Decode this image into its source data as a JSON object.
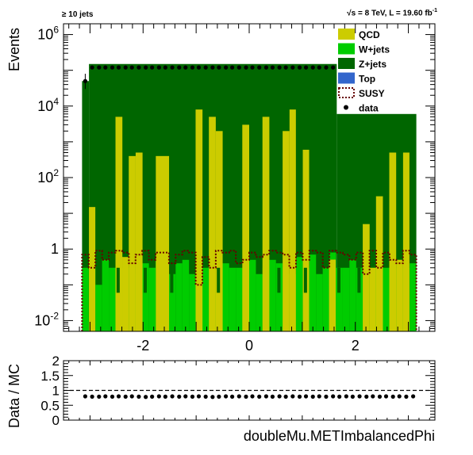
{
  "header": {
    "left": "≥ 10 jets",
    "right_prefix": "√s = 8 TeV, L = 19.60 fb",
    "right_sup": "-1"
  },
  "chart_data": [
    {
      "type": "bar",
      "stacked": true,
      "yscale": "log",
      "title": "",
      "xlabel": "",
      "ylabel": "Events",
      "xlim": [
        -3.5,
        3.5
      ],
      "ylim": [
        0.005,
        2000000
      ],
      "xticks": [
        "-2",
        "0",
        "2"
      ],
      "ytick_values": [
        0.01,
        1,
        100,
        10000,
        1000000
      ],
      "ytick_labels": [
        {
          "base": "10",
          "exp": "-2"
        },
        {
          "base": "1",
          "exp": ""
        },
        {
          "base": "10",
          "exp": "2"
        },
        {
          "base": "10",
          "exp": "4"
        },
        {
          "base": "10",
          "exp": "6"
        }
      ],
      "legend_position": "top-right",
      "legend": [
        {
          "label": "QCD",
          "color": "#cccc00",
          "kind": "fill"
        },
        {
          "label": "W+jets",
          "color": "#00cc00",
          "kind": "fill"
        },
        {
          "label": "Z+jets",
          "color": "#006600",
          "kind": "fill"
        },
        {
          "label": "Top",
          "color": "#3366cc",
          "kind": "fill"
        },
        {
          "label": "SUSY",
          "color": "#660000",
          "kind": "dashed"
        },
        {
          "label": "data",
          "color": "#000000",
          "kind": "marker"
        }
      ],
      "colors": {
        "qcd": "#cccc00",
        "wjets": "#00cc00",
        "zjets": "#006600",
        "top": "#3366cc",
        "susy": "#660000",
        "data": "#000000"
      },
      "bin_edges": [
        -3.15,
        3.15
      ],
      "n_bins": 50,
      "zjets_block": [
        {
          "x0": -3.15,
          "x1": -3.02,
          "y": 50000
        },
        {
          "x0": -3.02,
          "x1": 1.65,
          "y": 150000
        },
        {
          "x0": 1.65,
          "x1": 3.15,
          "y": 6000
        }
      ],
      "qcd_bars": [
        {
          "x0": -3.02,
          "x1": -2.9,
          "y": 0.3
        },
        {
          "x0": -2.9,
          "x1": -2.77,
          "y": 15
        },
        {
          "x0": -2.52,
          "x1": -2.39,
          "y": 0.5
        },
        {
          "x0": -2.64,
          "x1": -2.52,
          "y": 0.4
        },
        {
          "x0": -2.52,
          "x1": -2.39,
          "y": 0.4
        },
        {
          "x0": -2.52,
          "x1": -2.39,
          "y": 0.5
        },
        {
          "x0": -2.52,
          "x1": -2.39,
          "y": 0.4
        },
        {
          "x0": -2.52,
          "x1": -2.39,
          "y": 0.5
        },
        {
          "x0": -2.52,
          "x1": -2.39,
          "y": 0.5
        },
        {
          "x0": -2.52,
          "x1": -2.39,
          "y": 0.5
        },
        {
          "x0": -2.52,
          "x1": -2.39,
          "y": 0.5
        },
        {
          "x0": -2.52,
          "x1": -2.39,
          "y": 0.5
        },
        {
          "x0": -2.27,
          "x1": -2.14,
          "y": 5000
        },
        {
          "x0": -2.14,
          "x1": -2.01,
          "y": 400
        },
        {
          "x0": -1.89,
          "x1": -1.76,
          "y": 500
        },
        {
          "x0": -1.63,
          "x1": -1.38,
          "y": 400
        },
        {
          "x0": -1.38,
          "x1": -1.26,
          "y": 0.8
        },
        {
          "x0": -1.26,
          "x1": -1.13,
          "y": 0.5
        },
        {
          "x0": -1.13,
          "x1": -1.01,
          "y": 0.5
        },
        {
          "x0": -1.01,
          "x1": -0.88,
          "y": 8000
        },
        {
          "x0": -0.88,
          "x1": -0.76,
          "y": 0.3
        },
        {
          "x0": -0.76,
          "x1": -0.63,
          "y": 5000
        },
        {
          "x0": -0.63,
          "x1": -0.5,
          "y": 2000
        },
        {
          "x0": -0.25,
          "x1": -0.13,
          "y": 0.5
        },
        {
          "x0": -0.13,
          "x1": 0.0,
          "y": 3000
        },
        {
          "x0": 0.25,
          "x1": 0.38,
          "y": 5000
        },
        {
          "x0": 0.5,
          "x1": 0.63,
          "y": 0.5
        },
        {
          "x0": 0.63,
          "x1": 0.76,
          "y": 2000
        },
        {
          "x0": 0.76,
          "x1": 0.88,
          "y": 8000
        },
        {
          "x0": 0.88,
          "x1": 1.01,
          "y": 0.5
        },
        {
          "x0": 1.01,
          "x1": 1.13,
          "y": 600
        },
        {
          "x0": 1.26,
          "x1": 1.38,
          "y": 0.5
        },
        {
          "x0": 1.51,
          "x1": 1.63,
          "y": 0.5
        },
        {
          "x0": 1.51,
          "x1": 1.63,
          "y": 0.5
        },
        {
          "x0": 1.51,
          "x1": 1.63,
          "y": 0.5
        },
        {
          "x0": 1.51,
          "x1": 1.63,
          "y": 0.5
        },
        {
          "x0": 1.51,
          "x1": 1.63,
          "y": 0.5
        },
        {
          "x0": 1.51,
          "x1": 1.63,
          "y": 0.5
        },
        {
          "x0": 1.51,
          "x1": 1.63,
          "y": 0.5
        },
        {
          "x0": 1.51,
          "x1": 1.63,
          "y": 0.5
        },
        {
          "x0": 1.51,
          "x1": 1.63,
          "y": 0.5
        },
        {
          "x0": 1.51,
          "x1": 1.63,
          "y": 0.5
        },
        {
          "x0": 1.51,
          "x1": 1.63,
          "y": 0.5
        },
        {
          "x0": 1.51,
          "x1": 1.63,
          "y": 0.5
        },
        {
          "x0": 1.51,
          "x1": 1.63,
          "y": 0.5
        },
        {
          "x0": 1.51,
          "x1": 1.63,
          "y": 0.5
        },
        {
          "x0": 1.51,
          "x1": 1.63,
          "y": 0.5
        },
        {
          "x0": 1.51,
          "x1": 1.63,
          "y": 0.5
        },
        {
          "x0": 1.51,
          "x1": 1.63,
          "y": 0.5
        },
        {
          "x0": 1.51,
          "x1": 1.63,
          "y": 0.5
        }
      ],
      "qcd_tall": [
        {
          "x0": -3.02,
          "x1": -2.9,
          "y": 15
        },
        {
          "x0": -2.52,
          "x1": -2.39,
          "y": 0.6
        },
        {
          "x0": -2.52,
          "x1": -2.39,
          "y": 0.6
        },
        {
          "x0": -2.52,
          "x1": -2.39,
          "y": 0.6
        },
        {
          "x0": -2.52,
          "x1": -2.39,
          "y": 0.6
        },
        {
          "x0": -2.52,
          "x1": -2.39,
          "y": 5000
        },
        {
          "x0": -2.39,
          "x1": -2.27,
          "y": 0.6
        },
        {
          "x0": -2.27,
          "x1": -2.14,
          "y": 400
        },
        {
          "x0": -2.14,
          "x1": -2.01,
          "y": 500
        },
        {
          "x0": -1.76,
          "x1": -1.51,
          "y": 400
        },
        {
          "x0": -1.01,
          "x1": -0.88,
          "y": 8000
        },
        {
          "x0": -0.76,
          "x1": -0.63,
          "y": 5000
        },
        {
          "x0": -0.63,
          "x1": -0.5,
          "y": 2000
        },
        {
          "x0": -0.13,
          "x1": 0.0,
          "y": 3000
        },
        {
          "x0": 0.25,
          "x1": 0.38,
          "y": 5000
        },
        {
          "x0": 0.63,
          "x1": 0.76,
          "y": 2000
        },
        {
          "x0": 0.76,
          "x1": 0.88,
          "y": 8000
        },
        {
          "x0": 1.01,
          "x1": 1.13,
          "y": 600
        },
        {
          "x0": 1.51,
          "x1": 1.63,
          "y": 0.5
        },
        {
          "x0": 1.51,
          "x1": 1.63,
          "y": 0.5
        },
        {
          "x0": 1.51,
          "x1": 1.63,
          "y": 0.5
        },
        {
          "x0": 1.51,
          "x1": 1.63,
          "y": 0.5
        },
        {
          "x0": 1.51,
          "x1": 1.63,
          "y": 0.5
        },
        {
          "x0": 1.51,
          "x1": 1.63,
          "y": 0.5
        },
        {
          "x0": 1.51,
          "x1": 1.63,
          "y": 0.5
        },
        {
          "x0": 1.51,
          "x1": 1.63,
          "y": 0.5
        },
        {
          "x0": 1.51,
          "x1": 1.63,
          "y": 0.5
        },
        {
          "x0": 1.51,
          "x1": 1.63,
          "y": 0.5
        },
        {
          "x0": 1.51,
          "x1": 1.63,
          "y": 0.5
        },
        {
          "x0": 1.51,
          "x1": 1.63,
          "y": 0.5
        },
        {
          "x0": 1.51,
          "x1": 1.63,
          "y": 0.5
        },
        {
          "x0": 1.51,
          "x1": 1.63,
          "y": 0.5
        },
        {
          "x0": 1.51,
          "x1": 1.63,
          "y": 0.5
        },
        {
          "x0": 1.51,
          "x1": 1.63,
          "y": 0.5
        },
        {
          "x0": 1.51,
          "x1": 1.63,
          "y": 0.5
        },
        {
          "x0": 1.51,
          "x1": 1.63,
          "y": 0.5
        },
        {
          "x0": 1.51,
          "x1": 1.63,
          "y": 0.5
        },
        {
          "x0": 1.51,
          "x1": 1.63,
          "y": 0.5
        },
        {
          "x0": 2.14,
          "x1": 2.27,
          "y": 5
        },
        {
          "x0": 2.27,
          "x1": 2.39,
          "y": 0.3
        },
        {
          "x0": 2.39,
          "x1": 2.52,
          "y": 30
        },
        {
          "x0": 2.64,
          "x1": 2.77,
          "y": 500
        },
        {
          "x0": 2.77,
          "x1": 2.9,
          "y": 0.5
        },
        {
          "x0": 2.9,
          "x1": 3.02,
          "y": 500
        }
      ],
      "data_points_x": [
        -3.09,
        -2.96,
        -2.83,
        -2.71,
        -2.58,
        -2.46,
        -2.33,
        -2.21,
        -2.08,
        -1.95,
        -1.83,
        -1.7,
        -1.58,
        -1.45,
        -1.32,
        -1.2,
        -1.07,
        -0.95,
        -0.82,
        -0.69,
        -0.57,
        -0.44,
        -0.32,
        -0.19,
        -0.06,
        0.06,
        0.19,
        0.32,
        0.44,
        0.57,
        0.69,
        0.82,
        0.95,
        1.07,
        1.2,
        1.32,
        1.45,
        1.58,
        1.7,
        1.83,
        1.95,
        2.08,
        2.21,
        2.33,
        2.46,
        2.58,
        2.71,
        2.83,
        2.96,
        3.09
      ],
      "data_points_y": [
        50000,
        120000,
        120000,
        120000,
        120000,
        120000,
        120000,
        120000,
        120000,
        120000,
        120000,
        120000,
        120000,
        120000,
        120000,
        120000,
        120000,
        120000,
        120000,
        120000,
        120000,
        120000,
        120000,
        120000,
        120000,
        120000,
        120000,
        120000,
        120000,
        120000,
        120000,
        120000,
        120000,
        120000,
        120000,
        120000,
        120000,
        120000,
        null,
        null,
        null,
        null,
        null,
        null,
        null,
        null,
        null,
        null,
        null,
        null
      ]
    },
    {
      "type": "scatter",
      "title": "",
      "xlabel": "doubleMu.METImbalancedPhi",
      "ylabel": "Data / MC",
      "xlim": [
        -3.5,
        3.5
      ],
      "ylim": [
        0,
        2
      ],
      "yticks": [
        "0",
        "0.5",
        "1",
        "1.5",
        "2"
      ],
      "ytick_values": [
        0,
        0.5,
        1,
        1.5,
        2
      ],
      "reference_line": 1,
      "x": [
        -3.09,
        -2.96,
        -2.83,
        -2.71,
        -2.58,
        -2.46,
        -2.33,
        -2.21,
        -2.08,
        -1.95,
        -1.83,
        -1.7,
        -1.58,
        -1.45,
        -1.32,
        -1.2,
        -1.07,
        -0.95,
        -0.82,
        -0.69,
        -0.57,
        -0.44,
        -0.32,
        -0.19,
        -0.06,
        0.06,
        0.19,
        0.32,
        0.44,
        0.57,
        0.69,
        0.82,
        0.95,
        1.07,
        1.2,
        1.32,
        1.45,
        1.58,
        1.7,
        1.83,
        1.95,
        2.08,
        2.21,
        2.33,
        2.46,
        2.58,
        2.71,
        2.83,
        2.96,
        3.09
      ],
      "y": [
        0.8,
        0.79,
        0.79,
        0.8,
        0.79,
        0.8,
        0.79,
        0.8,
        0.79,
        0.78,
        0.79,
        0.8,
        0.79,
        0.8,
        0.79,
        0.8,
        0.79,
        0.8,
        0.79,
        0.78,
        0.79,
        0.8,
        0.79,
        0.8,
        0.79,
        0.8,
        0.79,
        0.8,
        0.79,
        0.8,
        0.79,
        0.8,
        0.79,
        0.8,
        0.79,
        0.8,
        0.79,
        0.8,
        0.79,
        0.8,
        0.79,
        0.8,
        0.79,
        0.8,
        0.79,
        0.8,
        0.79,
        0.8,
        0.79,
        0.8
      ]
    }
  ]
}
